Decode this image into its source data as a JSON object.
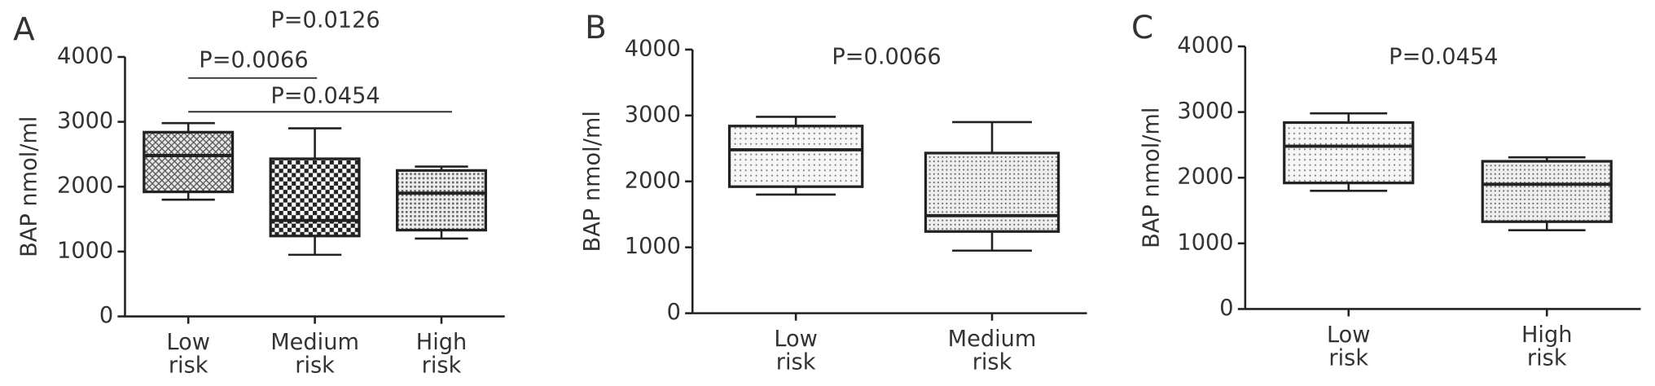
{
  "chart_data": [
    {
      "type": "box",
      "panel": "A",
      "ylabel": "BAP nmol/ml",
      "ylim": [
        0,
        4000
      ],
      "yticks": [
        0,
        1000,
        2000,
        3000,
        4000
      ],
      "categories": [
        "Low risk",
        "Medium risk",
        "High risk"
      ],
      "boxes": [
        {
          "min": 1800,
          "q1": 1920,
          "median": 2480,
          "q3": 2840,
          "max": 2980
        },
        {
          "min": 950,
          "q1": 1240,
          "median": 1480,
          "q3": 2430,
          "max": 2900
        },
        {
          "min": 1200,
          "q1": 1330,
          "median": 1900,
          "q3": 2250,
          "max": 2310
        }
      ],
      "annotations": [
        "P=0.0126",
        "P=0.0066",
        "P=0.0454"
      ]
    },
    {
      "type": "box",
      "panel": "B",
      "ylabel": "BAP nmol/ml",
      "ylim": [
        0,
        4000
      ],
      "yticks": [
        0,
        1000,
        2000,
        3000,
        4000
      ],
      "categories": [
        "Low risk",
        "Medium risk"
      ],
      "boxes": [
        {
          "min": 1800,
          "q1": 1920,
          "median": 2480,
          "q3": 2840,
          "max": 2980
        },
        {
          "min": 950,
          "q1": 1240,
          "median": 1480,
          "q3": 2430,
          "max": 2900
        }
      ],
      "annotations": [
        "P=0.0066"
      ]
    },
    {
      "type": "box",
      "panel": "C",
      "ylabel": "BAP nmol/ml",
      "ylim": [
        0,
        4000
      ],
      "yticks": [
        0,
        1000,
        2000,
        3000,
        4000
      ],
      "categories": [
        "Low risk",
        "High risk"
      ],
      "boxes": [
        {
          "min": 1800,
          "q1": 1920,
          "median": 2480,
          "q3": 2840,
          "max": 2980
        },
        {
          "min": 1200,
          "q1": 1330,
          "median": 1900,
          "q3": 2250,
          "max": 2310
        }
      ],
      "annotations": [
        "P=0.0454"
      ]
    }
  ]
}
